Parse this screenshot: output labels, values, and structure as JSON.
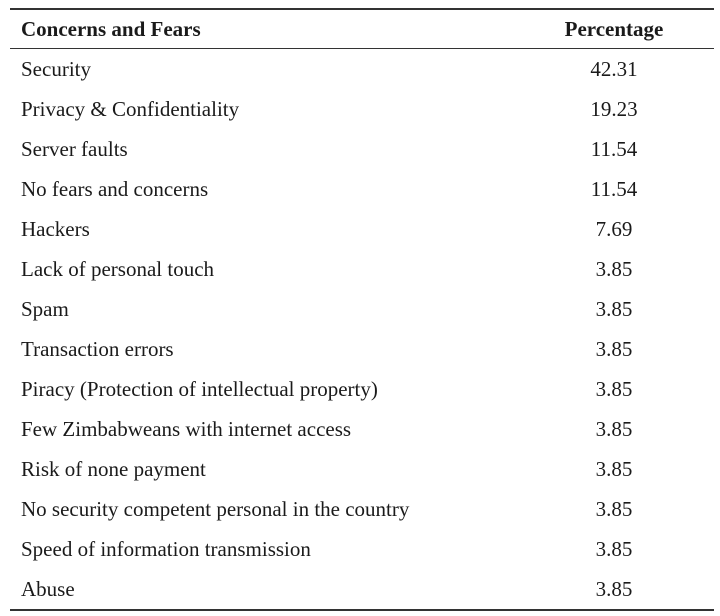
{
  "table": {
    "headers": {
      "concern": "Concerns and Fears",
      "percentage": "Percentage"
    },
    "rows": [
      {
        "concern": "Security",
        "percentage": "42.31"
      },
      {
        "concern": "Privacy & Confidentiality",
        "percentage": "19.23"
      },
      {
        "concern": "Server faults",
        "percentage": "11.54"
      },
      {
        "concern": "No fears and concerns",
        "percentage": "11.54"
      },
      {
        "concern": "Hackers",
        "percentage": "7.69"
      },
      {
        "concern": "Lack of personal touch",
        "percentage": "3.85"
      },
      {
        "concern": "Spam",
        "percentage": "3.85"
      },
      {
        "concern": "Transaction errors",
        "percentage": "3.85"
      },
      {
        "concern": "Piracy (Protection of intellectual property)",
        "percentage": "3.85"
      },
      {
        "concern": "Few Zimbabweans with internet access",
        "percentage": "3.85"
      },
      {
        "concern": "Risk of none payment",
        "percentage": "3.85"
      },
      {
        "concern": "No security competent personal in the country",
        "percentage": "3.85"
      },
      {
        "concern": "Speed of information transmission",
        "percentage": "3.85"
      },
      {
        "concern": "Abuse",
        "percentage": "3.85"
      }
    ]
  }
}
